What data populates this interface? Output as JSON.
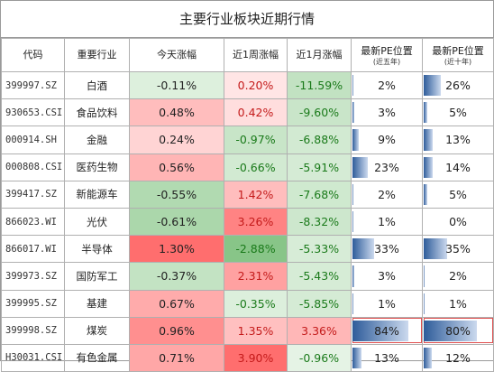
{
  "title": "主要行业板块近期行情",
  "headers": {
    "code": "代码",
    "industry": "重要行业",
    "today": "今天涨幅",
    "week": "近1周涨幅",
    "month": "近1月涨幅",
    "pe5": "最新PE位置",
    "pe5_sub": "(近五年)",
    "pe10": "最新PE位置",
    "pe10_sub": "(近十年)"
  },
  "colors": {
    "neg_text": "#1a7a1a",
    "pos_text": "#c41a1a",
    "bar": "#2e5c9a"
  },
  "rows": [
    {
      "code": "399997.SZ",
      "industry": "白酒",
      "today": "-0.11%",
      "today_v": -0.11,
      "week": "0.20%",
      "week_v": 0.2,
      "month": "-11.59%",
      "month_v": -11.59,
      "pe5": "2%",
      "pe5_v": 2,
      "pe10": "26%",
      "pe10_v": 26
    },
    {
      "code": "930653.CSI",
      "industry": "食品饮料",
      "today": "0.48%",
      "today_v": 0.48,
      "week": "0.42%",
      "week_v": 0.42,
      "month": "-9.60%",
      "month_v": -9.6,
      "pe5": "3%",
      "pe5_v": 3,
      "pe10": "5%",
      "pe10_v": 5
    },
    {
      "code": "000914.SH",
      "industry": "金融",
      "today": "0.24%",
      "today_v": 0.24,
      "week": "-0.97%",
      "week_v": -0.97,
      "month": "-6.88%",
      "month_v": -6.88,
      "pe5": "9%",
      "pe5_v": 9,
      "pe10": "13%",
      "pe10_v": 13
    },
    {
      "code": "000808.CSI",
      "industry": "医药生物",
      "today": "0.56%",
      "today_v": 0.56,
      "week": "-0.66%",
      "week_v": -0.66,
      "month": "-5.91%",
      "month_v": -5.91,
      "pe5": "23%",
      "pe5_v": 23,
      "pe10": "14%",
      "pe10_v": 14
    },
    {
      "code": "399417.SZ",
      "industry": "新能源车",
      "today": "-0.55%",
      "today_v": -0.55,
      "week": "1.42%",
      "week_v": 1.42,
      "month": "-7.68%",
      "month_v": -7.68,
      "pe5": "2%",
      "pe5_v": 2,
      "pe10": "5%",
      "pe10_v": 5
    },
    {
      "code": "866023.WI",
      "industry": "光伏",
      "today": "-0.61%",
      "today_v": -0.61,
      "week": "3.26%",
      "week_v": 3.26,
      "month": "-8.32%",
      "month_v": -8.32,
      "pe5": "1%",
      "pe5_v": 1,
      "pe10": "0%",
      "pe10_v": 0
    },
    {
      "code": "866017.WI",
      "industry": "半导体",
      "today": "1.30%",
      "today_v": 1.3,
      "week": "-2.88%",
      "week_v": -2.88,
      "month": "-5.33%",
      "month_v": -5.33,
      "pe5": "33%",
      "pe5_v": 33,
      "pe10": "35%",
      "pe10_v": 35
    },
    {
      "code": "399973.SZ",
      "industry": "国防军工",
      "today": "-0.37%",
      "today_v": -0.37,
      "week": "2.31%",
      "week_v": 2.31,
      "month": "-5.43%",
      "month_v": -5.43,
      "pe5": "3%",
      "pe5_v": 3,
      "pe10": "2%",
      "pe10_v": 2
    },
    {
      "code": "399995.SZ",
      "industry": "基建",
      "today": "0.67%",
      "today_v": 0.67,
      "week": "-0.35%",
      "week_v": -0.35,
      "month": "-5.85%",
      "month_v": -5.85,
      "pe5": "1%",
      "pe5_v": 1,
      "pe10": "1%",
      "pe10_v": 1
    },
    {
      "code": "399998.SZ",
      "industry": "煤炭",
      "today": "0.96%",
      "today_v": 0.96,
      "week": "1.35%",
      "week_v": 1.35,
      "month": "3.36%",
      "month_v": 3.36,
      "pe5": "84%",
      "pe5_v": 84,
      "pe10": "80%",
      "pe10_v": 80
    },
    {
      "code": "H30031.CSI",
      "industry": "有色金属",
      "today": "0.71%",
      "today_v": 0.71,
      "week": "3.90%",
      "week_v": 3.9,
      "month": "-0.96%",
      "month_v": -0.96,
      "pe5": "13%",
      "pe5_v": 13,
      "pe10": "12%",
      "pe10_v": 12
    }
  ]
}
